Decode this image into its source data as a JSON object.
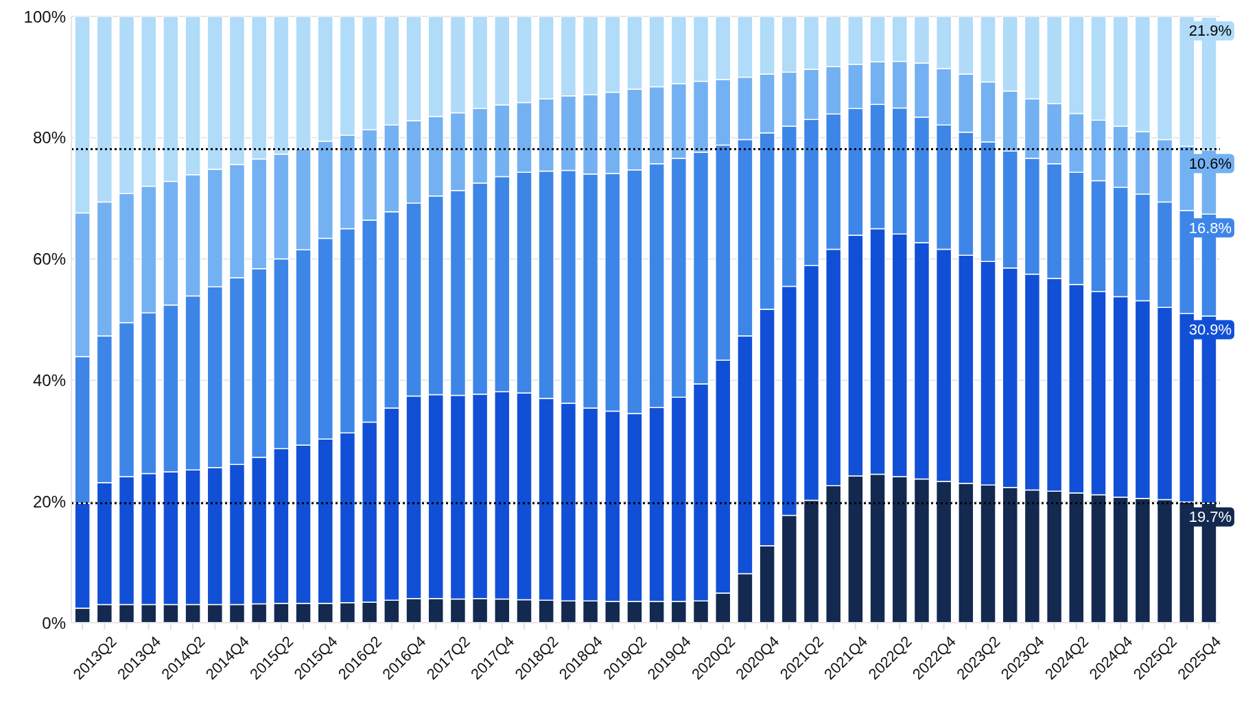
{
  "chart_data": {
    "type": "bar",
    "stacked": true,
    "grid": "y",
    "legend": false,
    "categories": [
      null,
      "2013Q2",
      null,
      "2013Q4",
      null,
      "2014Q2",
      null,
      "2014Q4",
      null,
      "2015Q2",
      null,
      "2015Q4",
      null,
      "2016Q2",
      null,
      "2016Q4",
      null,
      "2017Q2",
      null,
      "2017Q4",
      null,
      "2018Q2",
      null,
      "2018Q4",
      null,
      "2019Q2",
      null,
      "2019Q4",
      null,
      "2020Q2",
      null,
      "2020Q4",
      null,
      "2021Q2",
      null,
      "2021Q4",
      null,
      "2022Q2",
      null,
      "2022Q4",
      null,
      "2023Q2",
      null,
      "2023Q4",
      null,
      "2024Q2",
      null,
      "2024Q4",
      null,
      "2025Q2",
      null,
      "2025Q4"
    ],
    "ylim": [
      0,
      100
    ],
    "yticks": [
      {
        "value": 0,
        "label": "0%"
      },
      {
        "value": 20,
        "label": "20%"
      },
      {
        "value": 40,
        "label": "40%"
      },
      {
        "value": 60,
        "label": "60%"
      },
      {
        "value": 80,
        "label": "80%"
      },
      {
        "value": 100,
        "label": "100%"
      }
    ],
    "series": [
      {
        "color": "#13294f",
        "values": [
          2.4,
          3.0,
          3.0,
          3.0,
          3.0,
          3.0,
          3.0,
          3.0,
          3.1,
          3.2,
          3.2,
          3.2,
          3.3,
          3.4,
          3.7,
          4.0,
          4.0,
          3.9,
          4.0,
          3.9,
          3.8,
          3.7,
          3.6,
          3.6,
          3.5,
          3.5,
          3.5,
          3.5,
          3.6,
          4.9,
          8.1,
          12.7,
          17.7,
          20.2,
          22.6,
          24.2,
          24.5,
          24.1,
          23.7,
          23.3,
          23.0,
          22.7,
          22.3,
          21.9,
          21.7,
          21.4,
          21.1,
          20.7,
          20.5,
          20.3,
          19.9,
          19.7
        ],
        "value_labels": [
          null,
          null,
          null,
          null,
          null,
          null,
          null,
          null,
          null,
          null,
          null,
          null,
          null,
          null,
          null,
          null,
          null,
          null,
          null,
          null,
          null,
          null,
          null,
          null,
          null,
          null,
          null,
          null,
          null,
          null,
          null,
          null,
          null,
          null,
          null,
          null,
          null,
          null,
          null,
          null,
          null,
          null,
          null,
          null,
          null,
          null,
          null,
          null,
          null,
          null,
          null,
          "19.7%"
        ]
      },
      {
        "color": "#1150d6",
        "values": [
          17.3,
          20.1,
          21.1,
          21.6,
          21.9,
          22.2,
          22.6,
          23.1,
          24.2,
          25.5,
          26.1,
          27.1,
          28.0,
          29.7,
          31.7,
          33.4,
          33.6,
          33.6,
          33.7,
          34.2,
          34.1,
          33.3,
          32.6,
          31.8,
          31.4,
          31.0,
          32.0,
          33.7,
          35.8,
          38.4,
          39.2,
          39.0,
          37.8,
          38.7,
          39.0,
          39.7,
          40.5,
          40.0,
          39.0,
          38.3,
          37.6,
          36.9,
          36.2,
          35.6,
          35.1,
          34.4,
          33.5,
          33.1,
          32.6,
          31.7,
          31.1,
          30.9
        ],
        "value_labels": [
          null,
          null,
          null,
          null,
          null,
          null,
          null,
          null,
          null,
          null,
          null,
          null,
          null,
          null,
          null,
          null,
          null,
          null,
          null,
          null,
          null,
          null,
          null,
          null,
          null,
          null,
          null,
          null,
          null,
          null,
          null,
          null,
          null,
          null,
          null,
          null,
          null,
          null,
          null,
          null,
          null,
          null,
          null,
          null,
          null,
          null,
          null,
          null,
          null,
          null,
          null,
          "30.9%"
        ]
      },
      {
        "color": "#3d86e8",
        "values": [
          24.2,
          24.2,
          25.4,
          26.5,
          27.5,
          28.7,
          29.8,
          30.8,
          31.1,
          31.3,
          32.2,
          33.1,
          33.7,
          33.3,
          32.4,
          31.8,
          32.8,
          33.8,
          34.8,
          35.5,
          36.4,
          37.5,
          38.4,
          38.6,
          39.2,
          40.2,
          40.2,
          39.4,
          38.2,
          35.5,
          32.4,
          29.1,
          26.4,
          24.1,
          22.3,
          20.9,
          20.5,
          20.8,
          20.7,
          20.5,
          20.3,
          19.7,
          19.3,
          19.1,
          18.9,
          18.5,
          18.3,
          18.0,
          17.6,
          17.4,
          17.0,
          16.8
        ],
        "value_labels": [
          null,
          null,
          null,
          null,
          null,
          null,
          null,
          null,
          null,
          null,
          null,
          null,
          null,
          null,
          null,
          null,
          null,
          null,
          null,
          null,
          null,
          null,
          null,
          null,
          null,
          null,
          null,
          null,
          null,
          null,
          null,
          null,
          null,
          null,
          null,
          null,
          null,
          null,
          null,
          null,
          null,
          null,
          null,
          null,
          null,
          null,
          null,
          null,
          null,
          null,
          null,
          "16.8%"
        ]
      },
      {
        "color": "#74b1f2",
        "values": [
          23.7,
          22.1,
          21.3,
          20.9,
          20.4,
          20.0,
          19.4,
          18.7,
          18.1,
          17.3,
          16.7,
          16.0,
          15.4,
          14.9,
          14.3,
          13.6,
          13.1,
          12.8,
          12.3,
          11.8,
          11.5,
          11.9,
          12.3,
          13.1,
          13.4,
          13.3,
          12.7,
          12.3,
          11.7,
          10.8,
          10.3,
          9.7,
          8.9,
          8.3,
          7.8,
          7.3,
          7.0,
          7.7,
          8.9,
          9.3,
          9.6,
          9.9,
          9.9,
          9.8,
          9.9,
          9.7,
          10.0,
          10.1,
          10.3,
          10.3,
          10.6,
          10.6
        ],
        "value_labels": [
          null,
          null,
          null,
          null,
          null,
          null,
          null,
          null,
          null,
          null,
          null,
          null,
          null,
          null,
          null,
          null,
          null,
          null,
          null,
          null,
          null,
          null,
          null,
          null,
          null,
          null,
          null,
          null,
          null,
          null,
          null,
          null,
          null,
          null,
          null,
          null,
          null,
          null,
          null,
          null,
          null,
          null,
          null,
          null,
          null,
          null,
          null,
          null,
          null,
          null,
          null,
          "10.6%"
        ]
      },
      {
        "color": "#b0dbf9",
        "values": [
          32.4,
          30.6,
          29.2,
          28.0,
          27.2,
          26.1,
          25.2,
          24.4,
          23.5,
          22.7,
          21.8,
          20.6,
          19.6,
          18.7,
          17.9,
          17.2,
          16.5,
          15.9,
          15.2,
          14.6,
          14.2,
          13.6,
          13.1,
          12.9,
          12.5,
          12.0,
          11.6,
          11.1,
          10.7,
          10.4,
          10.0,
          9.5,
          9.2,
          8.7,
          8.3,
          7.9,
          7.5,
          7.4,
          7.7,
          8.6,
          9.5,
          10.8,
          12.3,
          13.6,
          14.4,
          16.0,
          17.1,
          18.1,
          19.0,
          20.3,
          21.4,
          21.9
        ],
        "value_labels": [
          null,
          null,
          null,
          null,
          null,
          null,
          null,
          null,
          null,
          null,
          null,
          null,
          null,
          null,
          null,
          null,
          null,
          null,
          null,
          null,
          null,
          null,
          null,
          null,
          null,
          null,
          null,
          null,
          null,
          null,
          null,
          null,
          null,
          null,
          null,
          null,
          null,
          null,
          null,
          null,
          null,
          null,
          null,
          null,
          null,
          null,
          null,
          null,
          null,
          null,
          null,
          "21.9%"
        ]
      }
    ],
    "ref_lines": [
      {
        "axis": "y",
        "value": 19.7,
        "color": "#000000",
        "line_style": "dotted"
      },
      {
        "axis": "y",
        "value": 78.1,
        "color": "#000000",
        "line_style": "dotted"
      }
    ]
  }
}
